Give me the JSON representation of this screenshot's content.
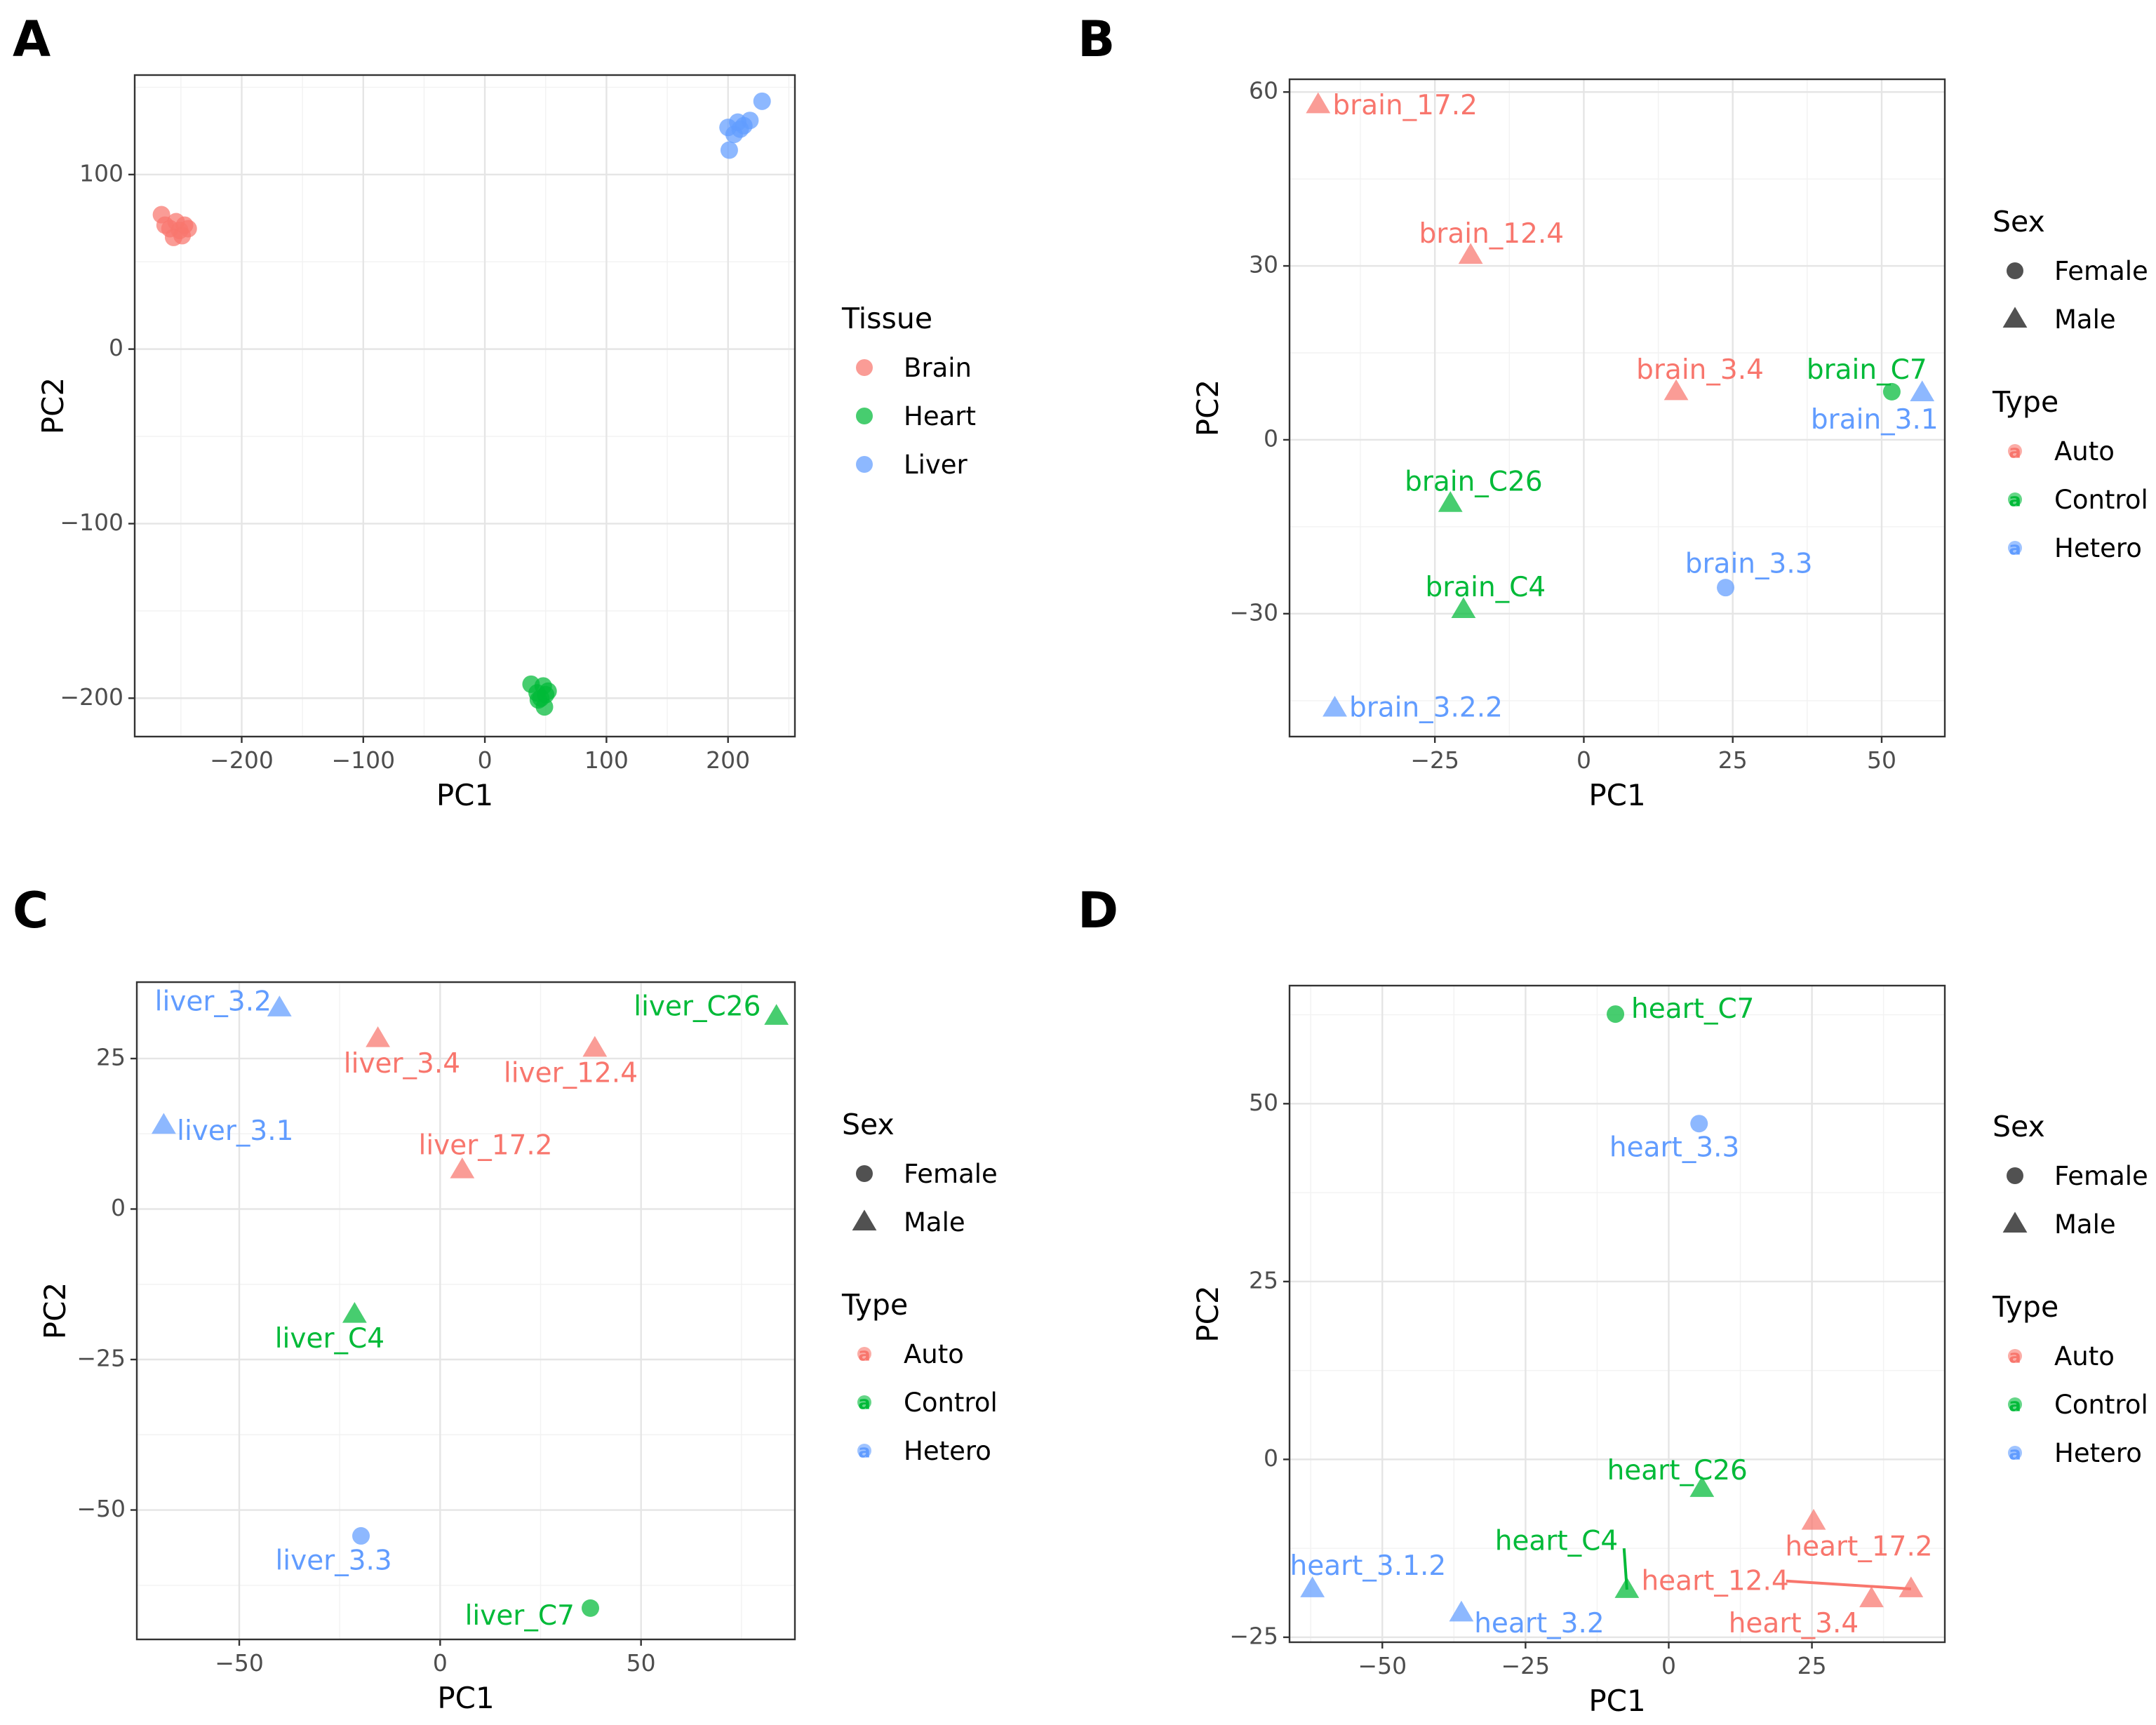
{
  "colors": {
    "Brain": "#F8766D",
    "Heart": "#00BA38",
    "Liver": "#619CFF",
    "Auto": "#F8766D",
    "Control": "#00BA38",
    "Hetero": "#619CFF"
  },
  "chart_data": [
    {
      "panel": "A",
      "type": "scatter",
      "title": "",
      "xlabel": "PC1",
      "ylabel": "PC2",
      "xlim": [
        -288,
        255
      ],
      "ylim": [
        -222,
        157
      ],
      "xticks": [
        -200,
        -100,
        0,
        100,
        200
      ],
      "xtick_labels": [
        "−200",
        "−100",
        "0",
        "100",
        "200"
      ],
      "yticks": [
        -200,
        -100,
        0,
        100
      ],
      "ytick_labels": [
        "−200",
        "−100",
        "0",
        "100"
      ],
      "grid": true,
      "legend_placement": "right",
      "legends": [
        {
          "title": "Tissue",
          "kind": "fill",
          "entries": [
            {
              "label": "Brain",
              "key": "Brain",
              "shape": "circle"
            },
            {
              "label": "Heart",
              "key": "Heart",
              "shape": "circle"
            },
            {
              "label": "Liver",
              "key": "Liver",
              "shape": "circle"
            }
          ]
        }
      ],
      "points": [
        {
          "x": -266,
          "y": 77,
          "group": "Brain",
          "shape": "circle"
        },
        {
          "x": -263,
          "y": 71,
          "group": "Brain",
          "shape": "circle"
        },
        {
          "x": -259,
          "y": 69,
          "group": "Brain",
          "shape": "circle"
        },
        {
          "x": -256,
          "y": 64,
          "group": "Brain",
          "shape": "circle"
        },
        {
          "x": -254,
          "y": 73,
          "group": "Brain",
          "shape": "circle"
        },
        {
          "x": -251,
          "y": 68,
          "group": "Brain",
          "shape": "circle"
        },
        {
          "x": -249,
          "y": 65,
          "group": "Brain",
          "shape": "circle"
        },
        {
          "x": -247,
          "y": 71,
          "group": "Brain",
          "shape": "circle"
        },
        {
          "x": -244,
          "y": 69,
          "group": "Brain",
          "shape": "circle"
        },
        {
          "x": 38,
          "y": -192,
          "group": "Heart",
          "shape": "circle"
        },
        {
          "x": 43,
          "y": -197,
          "group": "Heart",
          "shape": "circle"
        },
        {
          "x": 46,
          "y": -200,
          "group": "Heart",
          "shape": "circle"
        },
        {
          "x": 48,
          "y": -193,
          "group": "Heart",
          "shape": "circle"
        },
        {
          "x": 49,
          "y": -205,
          "group": "Heart",
          "shape": "circle"
        },
        {
          "x": 50,
          "y": -198,
          "group": "Heart",
          "shape": "circle"
        },
        {
          "x": 52,
          "y": -196,
          "group": "Heart",
          "shape": "circle"
        },
        {
          "x": 44,
          "y": -201,
          "group": "Heart",
          "shape": "circle"
        },
        {
          "x": 200,
          "y": 127,
          "group": "Liver",
          "shape": "circle"
        },
        {
          "x": 201,
          "y": 114,
          "group": "Liver",
          "shape": "circle"
        },
        {
          "x": 205,
          "y": 123,
          "group": "Liver",
          "shape": "circle"
        },
        {
          "x": 208,
          "y": 130,
          "group": "Liver",
          "shape": "circle"
        },
        {
          "x": 210,
          "y": 126,
          "group": "Liver",
          "shape": "circle"
        },
        {
          "x": 213,
          "y": 128,
          "group": "Liver",
          "shape": "circle"
        },
        {
          "x": 218,
          "y": 131,
          "group": "Liver",
          "shape": "circle"
        },
        {
          "x": 228,
          "y": 142,
          "group": "Liver",
          "shape": "circle"
        }
      ]
    },
    {
      "panel": "B",
      "type": "scatter",
      "title": "",
      "xlabel": "PC1",
      "ylabel": "PC2",
      "xlim": [
        -49.4,
        60.6
      ],
      "ylim": [
        -51.2,
        62.2
      ],
      "xticks": [
        -25,
        0,
        25,
        50
      ],
      "xtick_labels": [
        "−25",
        "0",
        "25",
        "50"
      ],
      "yticks": [
        -30,
        0,
        30,
        60
      ],
      "ytick_labels": [
        "−30",
        "0",
        "30",
        "60"
      ],
      "grid": true,
      "legend_placement": "right",
      "legends": [
        {
          "title": "Sex",
          "kind": "shape",
          "entries": [
            {
              "label": "Female",
              "shape": "circle"
            },
            {
              "label": "Male",
              "shape": "triangle"
            }
          ]
        },
        {
          "title": "Type",
          "kind": "fill",
          "entries": [
            {
              "label": "Auto",
              "key": "Auto",
              "shape": "text"
            },
            {
              "label": "Control",
              "key": "Control",
              "shape": "text"
            },
            {
              "label": "Hetero",
              "key": "Hetero",
              "shape": "text"
            }
          ]
        }
      ],
      "points": [
        {
          "x": -44.6,
          "y": 57.8,
          "group": "Auto",
          "shape": "triangle",
          "label": "brain_17.2",
          "lx": -30,
          "ly": 57.4
        },
        {
          "x": -19,
          "y": 31.8,
          "group": "Auto",
          "shape": "triangle",
          "label": "brain_12.4",
          "lx": -15.5,
          "ly": 35.3
        },
        {
          "x": 15.5,
          "y": 8.3,
          "group": "Auto",
          "shape": "triangle",
          "label": "brain_3.4",
          "lx": 19.5,
          "ly": 11.8
        },
        {
          "x": 51.7,
          "y": 8.3,
          "group": "Control",
          "shape": "circle",
          "label": "brain_C7",
          "lx": 47.5,
          "ly": 11.8
        },
        {
          "x": 56.8,
          "y": 8.1,
          "group": "Hetero",
          "shape": "triangle",
          "label": "brain_3.1",
          "lx": 48.8,
          "ly": 3.2
        },
        {
          "x": -22.4,
          "y": -11,
          "group": "Control",
          "shape": "triangle",
          "label": "brain_C26",
          "lx": -18.5,
          "ly": -7.5
        },
        {
          "x": 23.8,
          "y": -25.5,
          "group": "Hetero",
          "shape": "circle",
          "label": "brain_3.3",
          "lx": 27.7,
          "ly": -21.7
        },
        {
          "x": -20.2,
          "y": -29.3,
          "group": "Control",
          "shape": "triangle",
          "label": "brain_C4",
          "lx": -16.5,
          "ly": -25.7
        },
        {
          "x": -41.8,
          "y": -46.3,
          "group": "Hetero",
          "shape": "triangle",
          "label": "brain_3.2.2",
          "lx": -26.5,
          "ly": -46.5
        }
      ]
    },
    {
      "panel": "C",
      "type": "scatter",
      "title": "",
      "xlabel": "PC1",
      "ylabel": "PC2",
      "xlim": [
        -75.5,
        88.3
      ],
      "ylim": [
        -71.5,
        37.7
      ],
      "xticks": [
        -50,
        0,
        50
      ],
      "xtick_labels": [
        "−50",
        "0",
        "50"
      ],
      "yticks": [
        -50,
        -25,
        0,
        25
      ],
      "ytick_labels": [
        "−50",
        "−25",
        "0",
        "25"
      ],
      "grid": true,
      "legend_placement": "right",
      "legends": [
        {
          "title": "Sex",
          "kind": "shape",
          "entries": [
            {
              "label": "Female",
              "shape": "circle"
            },
            {
              "label": "Male",
              "shape": "triangle"
            }
          ]
        },
        {
          "title": "Type",
          "kind": "fill",
          "entries": [
            {
              "label": "Auto",
              "key": "Auto",
              "shape": "text"
            },
            {
              "label": "Control",
              "key": "Control",
              "shape": "text"
            },
            {
              "label": "Hetero",
              "key": "Hetero",
              "shape": "text"
            }
          ]
        }
      ],
      "points": [
        {
          "x": -40,
          "y": 33.4,
          "group": "Hetero",
          "shape": "triangle",
          "label": "liver_3.2",
          "lx": -56.5,
          "ly": 34.2
        },
        {
          "x": -15.5,
          "y": 28.3,
          "group": "Auto",
          "shape": "triangle",
          "label": "liver_3.4",
          "lx": -9.5,
          "ly": 23.9
        },
        {
          "x": 38.5,
          "y": 26.7,
          "group": "Auto",
          "shape": "triangle",
          "label": "liver_12.4",
          "lx": 32.5,
          "ly": 22.3
        },
        {
          "x": 83.7,
          "y": 32,
          "group": "Control",
          "shape": "triangle",
          "label": "liver_C26",
          "lx": 64,
          "ly": 33.4
        },
        {
          "x": -68.8,
          "y": 13.9,
          "group": "Hetero",
          "shape": "triangle",
          "label": "liver_3.1",
          "lx": -51,
          "ly": 12.7
        },
        {
          "x": 5.5,
          "y": 6.5,
          "group": "Auto",
          "shape": "triangle",
          "label": "liver_17.2",
          "lx": 11.3,
          "ly": 10.3
        },
        {
          "x": -21.3,
          "y": -17.5,
          "group": "Control",
          "shape": "triangle",
          "label": "liver_C4",
          "lx": -27.5,
          "ly": -21.8
        },
        {
          "x": -19.7,
          "y": -54.3,
          "group": "Hetero",
          "shape": "circle",
          "label": "liver_3.3",
          "lx": -26.5,
          "ly": -58.7
        },
        {
          "x": 37.4,
          "y": -66.3,
          "group": "Control",
          "shape": "circle",
          "label": "liver_C7",
          "lx": 19.8,
          "ly": -67.8
        }
      ]
    },
    {
      "panel": "D",
      "type": "scatter",
      "title": "",
      "xlabel": "PC1",
      "ylabel": "PC2",
      "xlim": [
        -66.2,
        48.2
      ],
      "ylim": [
        -25.7,
        66.6
      ],
      "xticks": [
        -50,
        -25,
        0,
        25
      ],
      "xtick_labels": [
        "−50",
        "−25",
        "0",
        "25"
      ],
      "yticks": [
        -25,
        0,
        25,
        50
      ],
      "ytick_labels": [
        "−25",
        "0",
        "25",
        "50"
      ],
      "grid": true,
      "legend_placement": "right",
      "legends": [
        {
          "title": "Sex",
          "kind": "shape",
          "entries": [
            {
              "label": "Female",
              "shape": "circle"
            },
            {
              "label": "Male",
              "shape": "triangle"
            }
          ]
        },
        {
          "title": "Type",
          "kind": "fill",
          "entries": [
            {
              "label": "Auto",
              "key": "Auto",
              "shape": "text"
            },
            {
              "label": "Control",
              "key": "Control",
              "shape": "text"
            },
            {
              "label": "Hetero",
              "key": "Hetero",
              "shape": "text"
            }
          ]
        }
      ],
      "points": [
        {
          "x": -9.3,
          "y": 62.6,
          "group": "Control",
          "shape": "circle",
          "label": "heart_C7",
          "lx": 4.2,
          "ly": 63.1
        },
        {
          "x": 5.3,
          "y": 47.2,
          "group": "Hetero",
          "shape": "circle",
          "label": "heart_3.3",
          "lx": 1,
          "ly": 43.6
        },
        {
          "x": 5.8,
          "y": -4.1,
          "group": "Control",
          "shape": "triangle",
          "label": "heart_C26",
          "lx": 1.5,
          "ly": -1.8
        },
        {
          "x": 25.3,
          "y": -8.7,
          "group": "Auto",
          "shape": "triangle",
          "label": "heart_17.2",
          "lx": 33.2,
          "ly": -12.5
        },
        {
          "x": -7.3,
          "y": -18.3,
          "group": "Control",
          "shape": "triangle",
          "label": "heart_C4",
          "lx": -19.6,
          "ly": -11.7,
          "leader": [
            -7.8,
            -12.5
          ]
        },
        {
          "x": 42.3,
          "y": -18.2,
          "group": "Auto",
          "shape": "triangle",
          "label": "heart_12.4",
          "lx": 8.1,
          "ly": -17.3,
          "leader": [
            20.5,
            -17.1
          ]
        },
        {
          "x": 35.4,
          "y": -19.6,
          "group": "Auto",
          "shape": "triangle",
          "label": "heart_3.4",
          "lx": 21.8,
          "ly": -23.3
        },
        {
          "x": -62.2,
          "y": -18.2,
          "group": "Hetero",
          "shape": "triangle",
          "label": "heart_3.1.2",
          "lx": -52.5,
          "ly": -15.2
        },
        {
          "x": -36.2,
          "y": -21.6,
          "group": "Hetero",
          "shape": "triangle",
          "label": "heart_3.2",
          "lx": -22.6,
          "ly": -23.3
        }
      ]
    }
  ],
  "panels_layout": [
    {
      "letter": "A"
    },
    {
      "letter": "B"
    },
    {
      "letter": "C"
    },
    {
      "letter": "D"
    }
  ]
}
